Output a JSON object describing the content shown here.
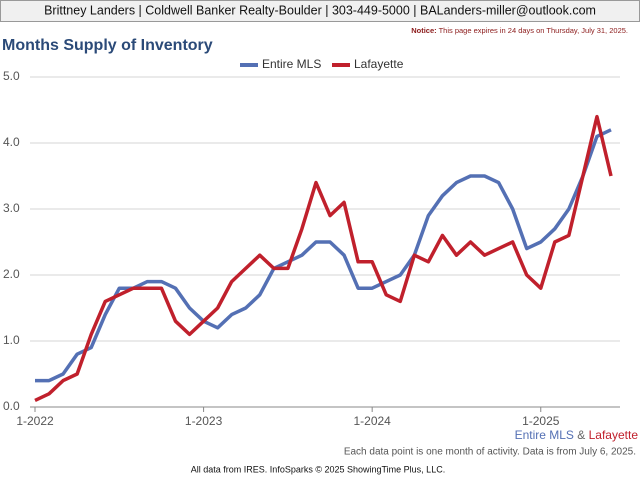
{
  "header": {
    "contact": "Brittney Landers | Coldwell Banker Realty-Boulder | 303-449-5000 | BALanders-miller@outlook.com",
    "notice_label": "Notice:",
    "notice": "This page expires in 24 days on Thursday, July 31, 2025."
  },
  "chart_data": {
    "type": "line",
    "title": "Months Supply of Inventory",
    "categories": [
      "1-2022",
      null,
      null,
      null,
      null,
      null,
      null,
      null,
      null,
      null,
      null,
      null,
      "1-2023",
      null,
      null,
      null,
      null,
      null,
      null,
      null,
      null,
      null,
      null,
      null,
      "1-2024",
      null,
      null,
      null,
      null,
      null,
      null,
      null,
      null,
      null,
      null,
      null,
      "1-2025",
      null,
      null,
      null,
      null,
      null
    ],
    "series": [
      {
        "name": "Entire MLS",
        "color": "#5470b4",
        "values": [
          0.4,
          0.4,
          0.5,
          0.8,
          0.9,
          1.4,
          1.8,
          1.8,
          1.9,
          1.9,
          1.8,
          1.5,
          1.3,
          1.2,
          1.4,
          1.5,
          1.7,
          2.1,
          2.2,
          2.3,
          2.5,
          2.5,
          2.3,
          1.8,
          1.8,
          1.9,
          2.0,
          2.3,
          2.9,
          3.2,
          3.4,
          3.5,
          3.5,
          3.4,
          3.0,
          2.4,
          2.5,
          2.7,
          3.0,
          3.5,
          4.1,
          4.2
        ]
      },
      {
        "name": "Lafayette",
        "color": "#c0202c",
        "values": [
          0.1,
          0.2,
          0.4,
          0.5,
          1.1,
          1.6,
          1.7,
          1.8,
          1.8,
          1.8,
          1.3,
          1.1,
          1.3,
          1.5,
          1.9,
          2.1,
          2.3,
          2.1,
          2.1,
          2.7,
          3.4,
          2.9,
          3.1,
          2.2,
          2.2,
          1.7,
          1.6,
          2.3,
          2.2,
          2.6,
          2.3,
          2.5,
          2.3,
          2.4,
          2.5,
          2.0,
          1.8,
          2.5,
          2.6,
          3.5,
          4.4,
          3.5
        ]
      }
    ],
    "ylim": [
      0,
      5
    ],
    "yticks": [
      {
        "value": 0,
        "label": "0.0"
      },
      {
        "value": 1,
        "label": "1.0"
      },
      {
        "value": 2,
        "label": "2.0"
      },
      {
        "value": 3,
        "label": "3.0"
      },
      {
        "value": 4,
        "label": "4.0"
      },
      {
        "value": 5,
        "label": "5.0"
      }
    ],
    "grid": true,
    "legend": "top",
    "footnote_separator": "&",
    "note": "Each data point is one month of activity. Data is from July 6, 2025.",
    "credit": "All data from IRES. InfoSparks © 2025 ShowingTime Plus, LLC."
  }
}
